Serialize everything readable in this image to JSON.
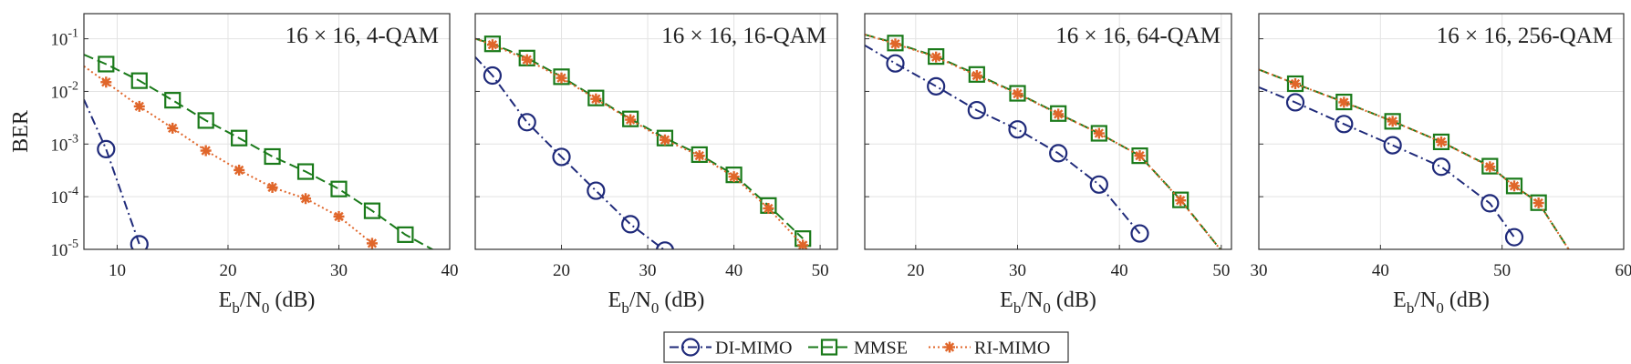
{
  "colors": {
    "di_mimo": "#1f2a7a",
    "mmse": "#1a7a1a",
    "ri_mimo": "#e0662a",
    "grid": "#e3e3e3",
    "axis": "#333333",
    "background": "#ffffff"
  },
  "legend": {
    "position": "bottom-center",
    "entries": [
      {
        "name": "DI-MIMO",
        "color": "#1f2a7a",
        "marker": "circle",
        "dash": "dash-dot"
      },
      {
        "name": "MMSE",
        "color": "#1a7a1a",
        "marker": "square",
        "dash": "dashed"
      },
      {
        "name": "RI-MIMO",
        "color": "#e0662a",
        "marker": "asterisk",
        "dash": "dotted"
      }
    ]
  },
  "chart_data": [
    {
      "type": "line",
      "title": "16 × 16, 4-QAM",
      "xlabel": "Eb/N0 (dB)",
      "ylabel": "BER",
      "yscale": "log",
      "xlim": [
        7,
        40
      ],
      "ylim": [
        1e-05,
        0.3
      ],
      "xticks": [
        10,
        20,
        30,
        40
      ],
      "xtick_labels": [
        "10",
        "20",
        "30",
        "40"
      ],
      "yticks": [
        1e-05,
        0.0001,
        0.001,
        0.01,
        0.1
      ],
      "series": [
        {
          "name": "DI-MIMO",
          "x": [
            7,
            9,
            12
          ],
          "y": [
            0.007,
            0.0008,
            1.25e-05
          ],
          "markers": [
            false,
            true,
            true
          ]
        },
        {
          "name": "MMSE",
          "x": [
            7,
            9,
            12,
            15,
            18,
            21,
            24,
            27,
            30,
            33,
            36,
            38.5
          ],
          "y": [
            0.05,
            0.033,
            0.016,
            0.0068,
            0.0028,
            0.0013,
            0.00058,
            0.0003,
            0.00014,
            5.4e-05,
            1.9e-05,
            9.8e-06
          ],
          "markers": [
            false,
            true,
            true,
            true,
            true,
            true,
            true,
            true,
            true,
            true,
            true,
            false
          ]
        },
        {
          "name": "RI-MIMO",
          "x": [
            7,
            9,
            12,
            15,
            18,
            21,
            24,
            27,
            30,
            33
          ],
          "y": [
            0.03,
            0.015,
            0.0052,
            0.002,
            0.00075,
            0.00032,
            0.00015,
            9.2e-05,
            4.2e-05,
            1.3e-05
          ],
          "markers": [
            false,
            true,
            true,
            true,
            true,
            true,
            true,
            true,
            true,
            true
          ]
        }
      ]
    },
    {
      "type": "line",
      "title": "16 × 16, 16-QAM",
      "xlabel": "Eb/N0 (dB)",
      "ylabel": "",
      "yscale": "log",
      "xlim": [
        10,
        52
      ],
      "ylim": [
        1e-05,
        0.3
      ],
      "xticks": [
        20,
        30,
        40,
        50
      ],
      "xtick_labels": [
        "20",
        "30",
        "40",
        "50"
      ],
      "yticks": [
        1e-05,
        0.0001,
        0.001,
        0.01,
        0.1
      ],
      "series": [
        {
          "name": "DI-MIMO",
          "x": [
            10,
            12,
            16,
            20,
            24,
            28,
            32
          ],
          "y": [
            0.045,
            0.02,
            0.0026,
            0.00057,
            0.00013,
            3e-05,
            9.5e-06
          ],
          "markers": [
            false,
            true,
            true,
            true,
            true,
            true,
            true
          ]
        },
        {
          "name": "MMSE",
          "x": [
            10,
            12,
            16,
            20,
            24,
            28,
            32,
            36,
            40,
            44,
            48
          ],
          "y": [
            0.1,
            0.08,
            0.043,
            0.019,
            0.0075,
            0.003,
            0.0013,
            0.00063,
            0.00026,
            6.8e-05,
            1.6e-05
          ],
          "markers": [
            false,
            true,
            true,
            true,
            true,
            true,
            true,
            true,
            true,
            true,
            true
          ]
        },
        {
          "name": "RI-MIMO",
          "x": [
            10,
            12,
            16,
            20,
            24,
            28,
            32,
            36,
            40,
            44,
            48
          ],
          "y": [
            0.1,
            0.077,
            0.04,
            0.018,
            0.0072,
            0.0029,
            0.0012,
            0.0006,
            0.00024,
            6e-05,
            1.2e-05
          ],
          "markers": [
            false,
            true,
            true,
            true,
            true,
            true,
            true,
            true,
            true,
            true,
            true
          ]
        }
      ]
    },
    {
      "type": "line",
      "title": "16 × 16, 64-QAM",
      "xlabel": "Eb/N0 (dB)",
      "ylabel": "",
      "yscale": "log",
      "xlim": [
        15,
        51
      ],
      "ylim": [
        1e-05,
        0.3
      ],
      "xticks": [
        20,
        30,
        40,
        50
      ],
      "xtick_labels": [
        "20",
        "30",
        "40",
        "50"
      ],
      "yticks": [
        1e-05,
        0.0001,
        0.001,
        0.01,
        0.1
      ],
      "series": [
        {
          "name": "DI-MIMO",
          "x": [
            15,
            18,
            22,
            26,
            30,
            34,
            38,
            42
          ],
          "y": [
            0.075,
            0.034,
            0.0125,
            0.0044,
            0.0019,
            0.00067,
            0.00017,
            2e-05
          ],
          "markers": [
            false,
            true,
            true,
            true,
            true,
            true,
            true,
            true
          ]
        },
        {
          "name": "MMSE",
          "x": [
            15,
            18,
            22,
            26,
            30,
            34,
            38,
            42,
            46,
            50
          ],
          "y": [
            0.12,
            0.083,
            0.046,
            0.021,
            0.0092,
            0.0038,
            0.0016,
            0.0006,
            8.7e-05,
            9.5e-06
          ],
          "markers": [
            false,
            true,
            true,
            true,
            true,
            true,
            true,
            true,
            true,
            false
          ]
        },
        {
          "name": "RI-MIMO",
          "x": [
            15,
            18,
            22,
            26,
            30,
            34,
            38,
            42,
            46,
            50
          ],
          "y": [
            0.12,
            0.08,
            0.045,
            0.02,
            0.009,
            0.0037,
            0.0016,
            0.0006,
            8.5e-05,
            9.5e-06
          ],
          "markers": [
            false,
            true,
            true,
            true,
            true,
            true,
            true,
            true,
            true,
            false
          ]
        }
      ]
    },
    {
      "type": "line",
      "title": "16 × 16, 256-QAM",
      "xlabel": "Eb/N0 (dB)",
      "ylabel": "",
      "yscale": "log",
      "xlim": [
        30,
        60
      ],
      "ylim": [
        1e-05,
        0.3
      ],
      "xticks": [
        30,
        40,
        50,
        60
      ],
      "xtick_labels": [
        "30",
        "40",
        "50",
        "60"
      ],
      "yticks": [
        1e-05,
        0.0001,
        0.001,
        0.01,
        0.1
      ],
      "series": [
        {
          "name": "DI-MIMO",
          "x": [
            30,
            33,
            37,
            41,
            45,
            49,
            51
          ],
          "y": [
            0.012,
            0.0062,
            0.0024,
            0.00095,
            0.00037,
            7.5e-05,
            1.7e-05
          ],
          "markers": [
            false,
            true,
            true,
            true,
            true,
            true,
            true
          ]
        },
        {
          "name": "MMSE",
          "x": [
            30,
            33,
            37,
            41,
            45,
            49,
            51,
            53,
            55.5
          ],
          "y": [
            0.026,
            0.014,
            0.0063,
            0.0027,
            0.0011,
            0.00038,
            0.00016,
            7.7e-05,
            9.8e-06
          ],
          "markers": [
            false,
            true,
            true,
            true,
            true,
            true,
            true,
            true,
            false
          ]
        },
        {
          "name": "RI-MIMO",
          "x": [
            30,
            33,
            37,
            41,
            45,
            49,
            51,
            53,
            55.5
          ],
          "y": [
            0.026,
            0.014,
            0.0062,
            0.0027,
            0.0011,
            0.00037,
            0.00016,
            7.6e-05,
            9.8e-06
          ],
          "markers": [
            false,
            true,
            true,
            true,
            true,
            true,
            true,
            true,
            false
          ]
        }
      ]
    }
  ]
}
